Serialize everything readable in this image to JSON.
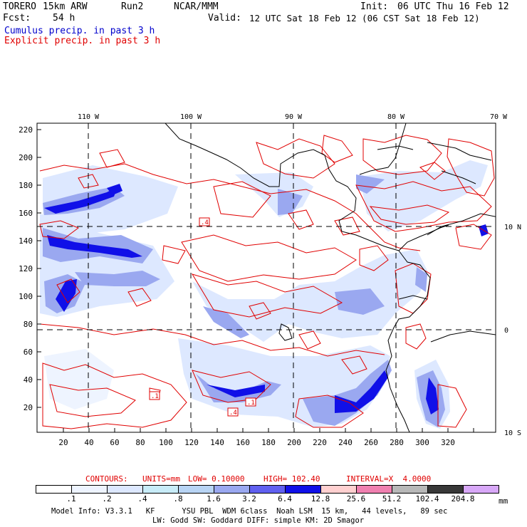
{
  "header": {
    "model": "TORERO",
    "resolution": "15km ARW",
    "run": "Run2",
    "org": "NCAR/MMM",
    "init_label": "Init:",
    "init_value": "06 UTC Thu 16 Feb 12",
    "fcst_label": "Fcst:",
    "fcst_value": "54 h",
    "valid_label": "Valid:",
    "valid_value": "12 UTC Sat 18 Feb 12 (06 CST Sat 18 Feb 12)"
  },
  "legend": {
    "cumulus": "Cumulus precip. in past 3 h",
    "explicit": "Explicit precip. in past 3 h",
    "cumulus_color": "#0000cc",
    "explicit_color": "#e00000"
  },
  "map": {
    "lon_labels": [
      "110 W",
      "100 W",
      "90 W",
      "80 W",
      "70 W"
    ],
    "lat_labels": [
      "10 N",
      "0",
      "10 S"
    ],
    "y_ticks": [
      "220",
      "200",
      "180",
      "160",
      "140",
      "120",
      "100",
      "80",
      "60",
      "40",
      "20"
    ],
    "x_ticks": [
      "20",
      "40",
      "60",
      "80",
      "100",
      "120",
      "140",
      "160",
      "180",
      "200",
      "220",
      "240",
      "260",
      "280",
      "300",
      "320"
    ],
    "contour_labels": [
      ".4",
      ".1",
      ".4",
      ".1"
    ]
  },
  "contour_info": {
    "contours": "CONTOURS:",
    "units": "UNITS=mm",
    "low": "LOW= 0.10000",
    "high": "HIGH= 102.40",
    "interval": "INTERVAL=X  4.0000"
  },
  "colorbar": {
    "labels": [
      ".1",
      ".2",
      ".4",
      ".8",
      "1.6",
      "3.2",
      "6.4",
      "12.8",
      "25.6",
      "51.2",
      "102.4",
      "204.8"
    ],
    "unit": "mm",
    "colors": [
      "#ffffff",
      "#eef4ff",
      "#dde8ff",
      "#c8ecf8",
      "#b8d4f4",
      "#9aa8f0",
      "#6060f0",
      "#1010e8",
      "#ffd0d0",
      "#f080b0",
      "#b8b8b8",
      "#383838",
      "#d8a8f8"
    ]
  },
  "footer": {
    "line1": "Model Info: V3.3.1   KF      YSU PBL  WDM 6class  Noah LSM  15 km,   44 levels,   89 sec",
    "line2": "LW: Godd SW: Goddard DIFF: simple KM: 2D Smagor"
  }
}
